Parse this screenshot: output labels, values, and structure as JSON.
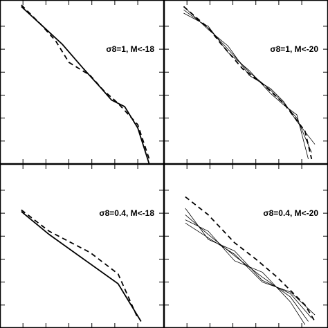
{
  "chart_data": [
    {
      "type": "line",
      "annotation": "σ8=1, M<-18",
      "xlim": [
        0,
        1
      ],
      "ylim": [
        0,
        1
      ],
      "xticks": [
        0.14,
        0.28,
        0.42,
        0.56,
        0.7,
        0.84
      ],
      "yticks": [
        0.14,
        0.28,
        0.42,
        0.56,
        0.7,
        0.84
      ],
      "series": [
        {
          "color": "#000000",
          "dash": false,
          "width": 1.8,
          "x": [
            0.13,
            0.25,
            0.38,
            0.51,
            0.61,
            0.68,
            0.76,
            0.84,
            0.91
          ],
          "values": [
            0.96,
            0.85,
            0.73,
            0.58,
            0.47,
            0.39,
            0.35,
            0.22,
            0.0
          ]
        },
        {
          "color": "#000000",
          "dash": true,
          "width": 1.8,
          "x": [
            0.13,
            0.25,
            0.34,
            0.42,
            0.55,
            0.63,
            0.72,
            0.84,
            0.91
          ],
          "values": [
            0.97,
            0.85,
            0.75,
            0.62,
            0.54,
            0.45,
            0.37,
            0.24,
            0.03
          ]
        }
      ]
    },
    {
      "type": "line",
      "annotation": "σ8=1, M<-20",
      "xlim": [
        0,
        1
      ],
      "ylim": [
        0,
        1
      ],
      "xticks": [
        0.14,
        0.28,
        0.42,
        0.56,
        0.7,
        0.84
      ],
      "yticks": [
        0.14,
        0.28,
        0.42,
        0.56,
        0.7,
        0.84
      ],
      "series": [
        {
          "color": "#000000",
          "dash": false,
          "width": 0.8,
          "x": [
            0.12,
            0.27,
            0.39,
            0.52,
            0.65,
            0.73,
            0.81,
            0.9
          ],
          "values": [
            0.94,
            0.83,
            0.7,
            0.56,
            0.45,
            0.37,
            0.28,
            0.07
          ]
        },
        {
          "color": "#000000",
          "dash": false,
          "width": 0.8,
          "x": [
            0.12,
            0.27,
            0.39,
            0.52,
            0.65,
            0.73,
            0.81,
            0.92
          ],
          "values": [
            0.96,
            0.82,
            0.72,
            0.54,
            0.46,
            0.38,
            0.26,
            0.12
          ]
        },
        {
          "color": "#000000",
          "dash": false,
          "width": 0.8,
          "x": [
            0.12,
            0.27,
            0.39,
            0.52,
            0.65,
            0.73,
            0.81,
            0.88
          ],
          "values": [
            0.92,
            0.84,
            0.68,
            0.57,
            0.43,
            0.36,
            0.3,
            0.03
          ]
        },
        {
          "color": "#000000",
          "dash": true,
          "width": 1.8,
          "x": [
            0.12,
            0.27,
            0.35,
            0.48,
            0.6,
            0.73,
            0.86,
            0.9
          ],
          "values": [
            0.96,
            0.83,
            0.73,
            0.58,
            0.49,
            0.37,
            0.2,
            0.03
          ]
        }
      ]
    },
    {
      "type": "line",
      "annotation": "σ8=0.4, M<-18",
      "xlim": [
        0,
        1
      ],
      "ylim": [
        0,
        1
      ],
      "xticks": [
        0.14,
        0.28,
        0.42,
        0.56,
        0.7,
        0.84
      ],
      "yticks": [
        0.14,
        0.28,
        0.42,
        0.56,
        0.7,
        0.84
      ],
      "series": [
        {
          "color": "#000000",
          "dash": false,
          "width": 1.8,
          "x": [
            0.13,
            0.3,
            0.51,
            0.72,
            0.86
          ],
          "values": [
            0.71,
            0.57,
            0.42,
            0.27,
            0.04
          ]
        },
        {
          "color": "#000000",
          "dash": true,
          "width": 1.8,
          "x": [
            0.13,
            0.3,
            0.55,
            0.72,
            0.84
          ],
          "values": [
            0.72,
            0.59,
            0.46,
            0.33,
            0.06
          ]
        }
      ]
    },
    {
      "type": "line",
      "annotation": "σ8=0.4, M<-20",
      "xlim": [
        0,
        1
      ],
      "ylim": [
        0,
        1
      ],
      "xticks": [
        0.14,
        0.28,
        0.42,
        0.56,
        0.7,
        0.84
      ],
      "yticks": [
        0.14,
        0.28,
        0.42,
        0.56,
        0.7,
        0.84
      ],
      "series": [
        {
          "color": "#000000",
          "dash": false,
          "width": 0.8,
          "x": [
            0.13,
            0.27,
            0.43,
            0.6,
            0.77,
            0.88
          ],
          "values": [
            0.69,
            0.57,
            0.44,
            0.31,
            0.19,
            0.04
          ]
        },
        {
          "color": "#000000",
          "dash": false,
          "width": 0.8,
          "x": [
            0.13,
            0.27,
            0.43,
            0.6,
            0.77,
            0.9
          ],
          "values": [
            0.73,
            0.54,
            0.47,
            0.29,
            0.21,
            0.06
          ]
        },
        {
          "color": "#000000",
          "dash": false,
          "width": 0.8,
          "x": [
            0.13,
            0.27,
            0.43,
            0.6,
            0.77,
            0.86
          ],
          "values": [
            0.66,
            0.59,
            0.41,
            0.34,
            0.16,
            0.02
          ]
        },
        {
          "color": "#000000",
          "dash": false,
          "width": 0.8,
          "x": [
            0.13,
            0.27,
            0.43,
            0.6,
            0.77,
            0.92
          ],
          "values": [
            0.64,
            0.55,
            0.45,
            0.28,
            0.22,
            0.08
          ]
        },
        {
          "color": "#000000",
          "dash": true,
          "width": 1.8,
          "x": [
            0.13,
            0.27,
            0.43,
            0.56,
            0.69,
            0.86,
            0.92
          ],
          "values": [
            0.8,
            0.69,
            0.52,
            0.42,
            0.31,
            0.14,
            0.04
          ]
        }
      ]
    }
  ]
}
